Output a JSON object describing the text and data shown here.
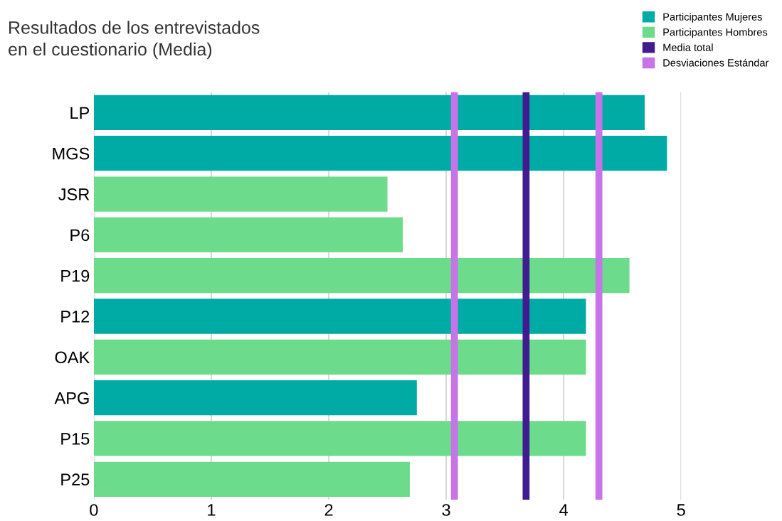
{
  "chart_data": {
    "type": "bar",
    "orientation": "horizontal",
    "title": "Resultados de los entrevistados\nen el cuestionario (Media)",
    "categories": [
      "LP",
      "MGS",
      "JSR",
      "P6",
      "P19",
      "P12",
      "OAK",
      "APG",
      "P15",
      "P25"
    ],
    "series": [
      {
        "name": "Participantes Mujeres",
        "color": "#00aba6",
        "values": [
          4.69,
          4.88,
          null,
          null,
          null,
          4.19,
          null,
          2.75,
          null,
          null
        ]
      },
      {
        "name": "Participantes Hombres",
        "color": "#6cdb8b",
        "values": [
          null,
          null,
          2.5,
          2.63,
          4.56,
          null,
          4.19,
          null,
          4.19,
          2.69
        ]
      }
    ],
    "ref_lines": [
      {
        "axis": "x",
        "value": 3.68,
        "label": "Media total",
        "color": "#3f1d8f"
      },
      {
        "axis": "x",
        "value": 3.07,
        "label": "Desviaciones Estándar",
        "color": "#c774e8"
      },
      {
        "axis": "x",
        "value": 4.3,
        "color": "#c774e8"
      }
    ],
    "xlim": [
      0,
      5
    ],
    "xticks": [
      0,
      1,
      2,
      3,
      4,
      5
    ],
    "grid": "x",
    "legend": "top right"
  }
}
